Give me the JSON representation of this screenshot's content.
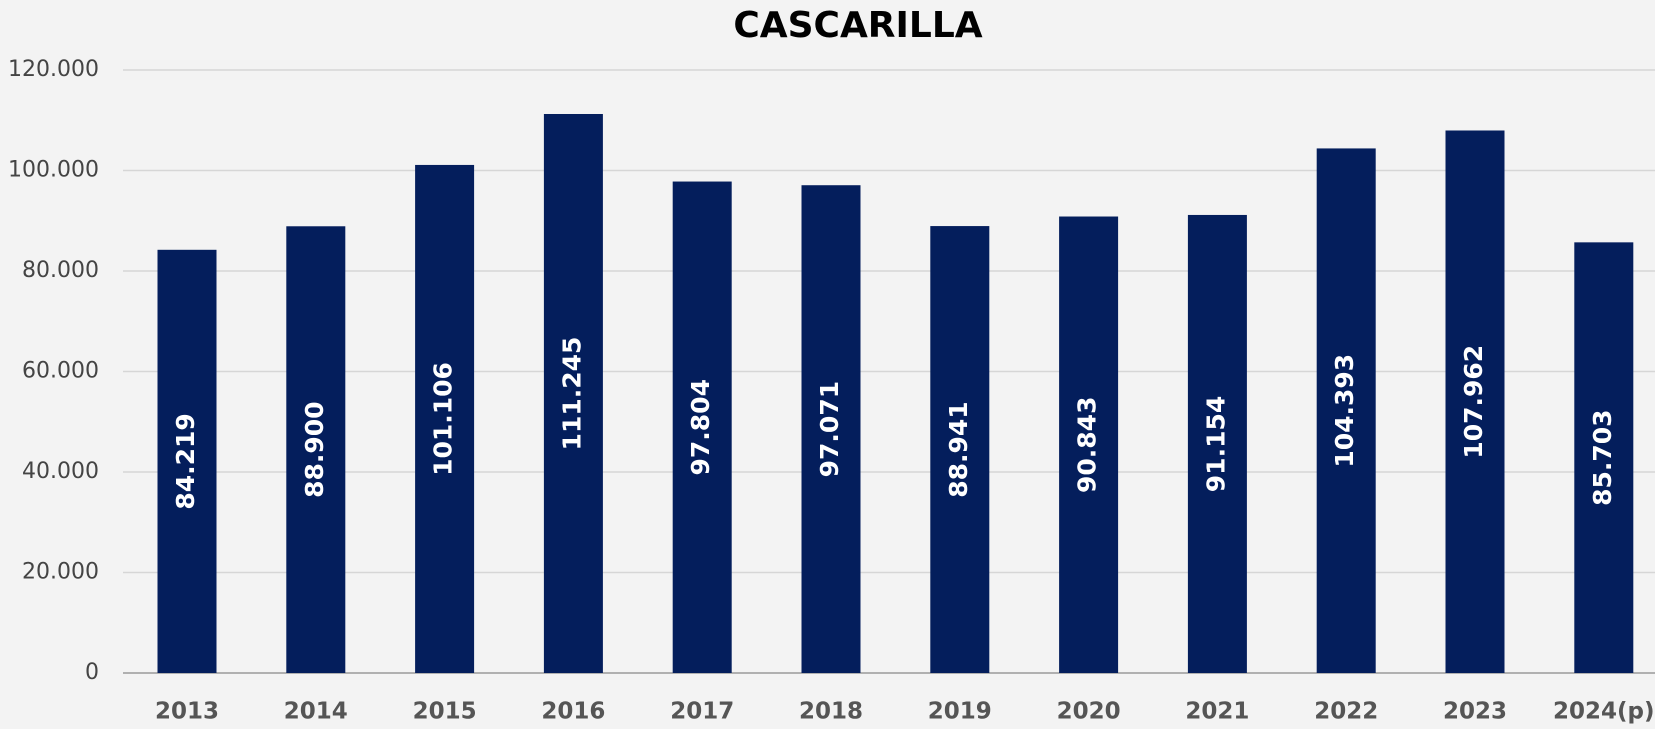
{
  "chart_data": {
    "type": "bar",
    "title": "CASCARILLA",
    "categories": [
      "2013",
      "2014",
      "2015",
      "2016",
      "2017",
      "2018",
      "2019",
      "2020",
      "2021",
      "2022",
      "2023",
      "2024(p)"
    ],
    "values": [
      84219,
      88900,
      101106,
      111245,
      97804,
      97071,
      88941,
      90843,
      91154,
      104393,
      107962,
      85703
    ],
    "value_labels": [
      "84.219",
      "88.900",
      "101.106",
      "111.245",
      "97.804",
      "97.071",
      "88.941",
      "90.843",
      "91.154",
      "104.393",
      "107.962",
      "85.703"
    ],
    "color": "#041e5c",
    "ylim": [
      0,
      120000
    ],
    "yticks": [
      0,
      {
        "value": 20000,
        "label": "20.000"
      },
      {
        "value": 40000,
        "label": "40.000"
      },
      {
        "value": 60000,
        "label": "60.000"
      },
      {
        "value": 80000,
        "label": "80.000"
      },
      {
        "value": 100000,
        "label": "100.000"
      },
      {
        "value": 120000,
        "label": "120.000"
      }
    ],
    "grid": true
  }
}
